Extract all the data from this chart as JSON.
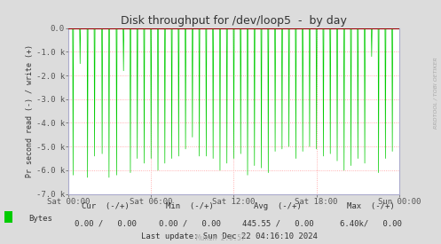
{
  "title": "Disk throughput for /dev/loop5  -  by day",
  "ylabel": "Pr second read (-) / write (+)",
  "bg_color": "#DCDCDC",
  "plot_bg_color": "#FFFFFF",
  "grid_color": "#FF9999",
  "line_color": "#00CC00",
  "zero_line_color": "#990000",
  "spine_color": "#AAAACC",
  "ylim": [
    -7000,
    0
  ],
  "yticks": [
    0,
    -1000,
    -2000,
    -3000,
    -4000,
    -5000,
    -6000,
    -7000
  ],
  "ytick_labels": [
    "0.0",
    "-1.0 k",
    "-2.0 k",
    "-3.0 k",
    "-4.0 k",
    "-5.0 k",
    "-6.0 k",
    "-7.0 k"
  ],
  "xtick_positions": [
    0,
    6,
    12,
    18,
    24
  ],
  "xtick_labels": [
    "Sat 00:00",
    "Sat 06:00",
    "Sat 12:00",
    "Sat 18:00",
    "Sun 00:00"
  ],
  "legend_label": "Bytes",
  "legend_color": "#00CC00",
  "watermark": "RRDTOOL / TOBI OETIKER",
  "title_fontsize": 9,
  "axis_fontsize": 6.5,
  "footer_fontsize": 6.5,
  "munin_fontsize": 5.5
}
